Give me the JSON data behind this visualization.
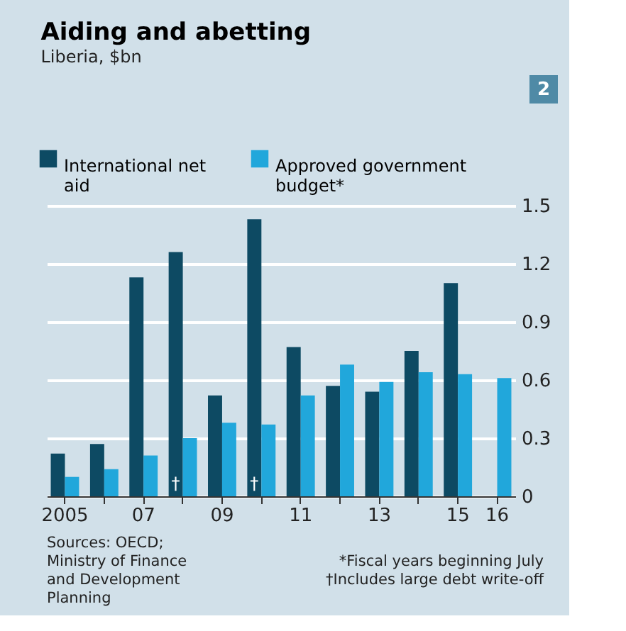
{
  "chart_data": {
    "type": "bar",
    "title": "Aiding and abetting",
    "subtitle": "Liberia, $bn",
    "categories": [
      "2005",
      null,
      "07",
      null,
      "09",
      null,
      "11",
      null,
      "13",
      null,
      "15",
      "16"
    ],
    "series": [
      {
        "name": "International net aid",
        "color": "#0d4a63",
        "values": [
          0.22,
          0.27,
          1.13,
          1.26,
          0.52,
          1.43,
          0.77,
          0.57,
          0.54,
          0.75,
          1.1,
          null
        ],
        "value_labels": [
          null,
          null,
          null,
          "†",
          null,
          "†",
          null,
          null,
          null,
          null,
          null,
          null
        ]
      },
      {
        "name": "Approved government budget*",
        "color": "#21a7db",
        "values": [
          0.1,
          0.14,
          0.21,
          0.3,
          0.38,
          0.37,
          0.52,
          0.68,
          0.59,
          0.64,
          0.63,
          0.61
        ]
      }
    ],
    "ylim": [
      0,
      1.5
    ],
    "yticks": [
      0,
      0.3,
      0.6,
      0.9,
      1.2,
      1.5
    ],
    "grid": "y",
    "legend": "top",
    "annotations": [
      "2",
      "Sources: OECD; Ministry of Finance and Development Planning",
      "*Fiscal years beginning July",
      "†Includes large debt write-off"
    ]
  }
}
